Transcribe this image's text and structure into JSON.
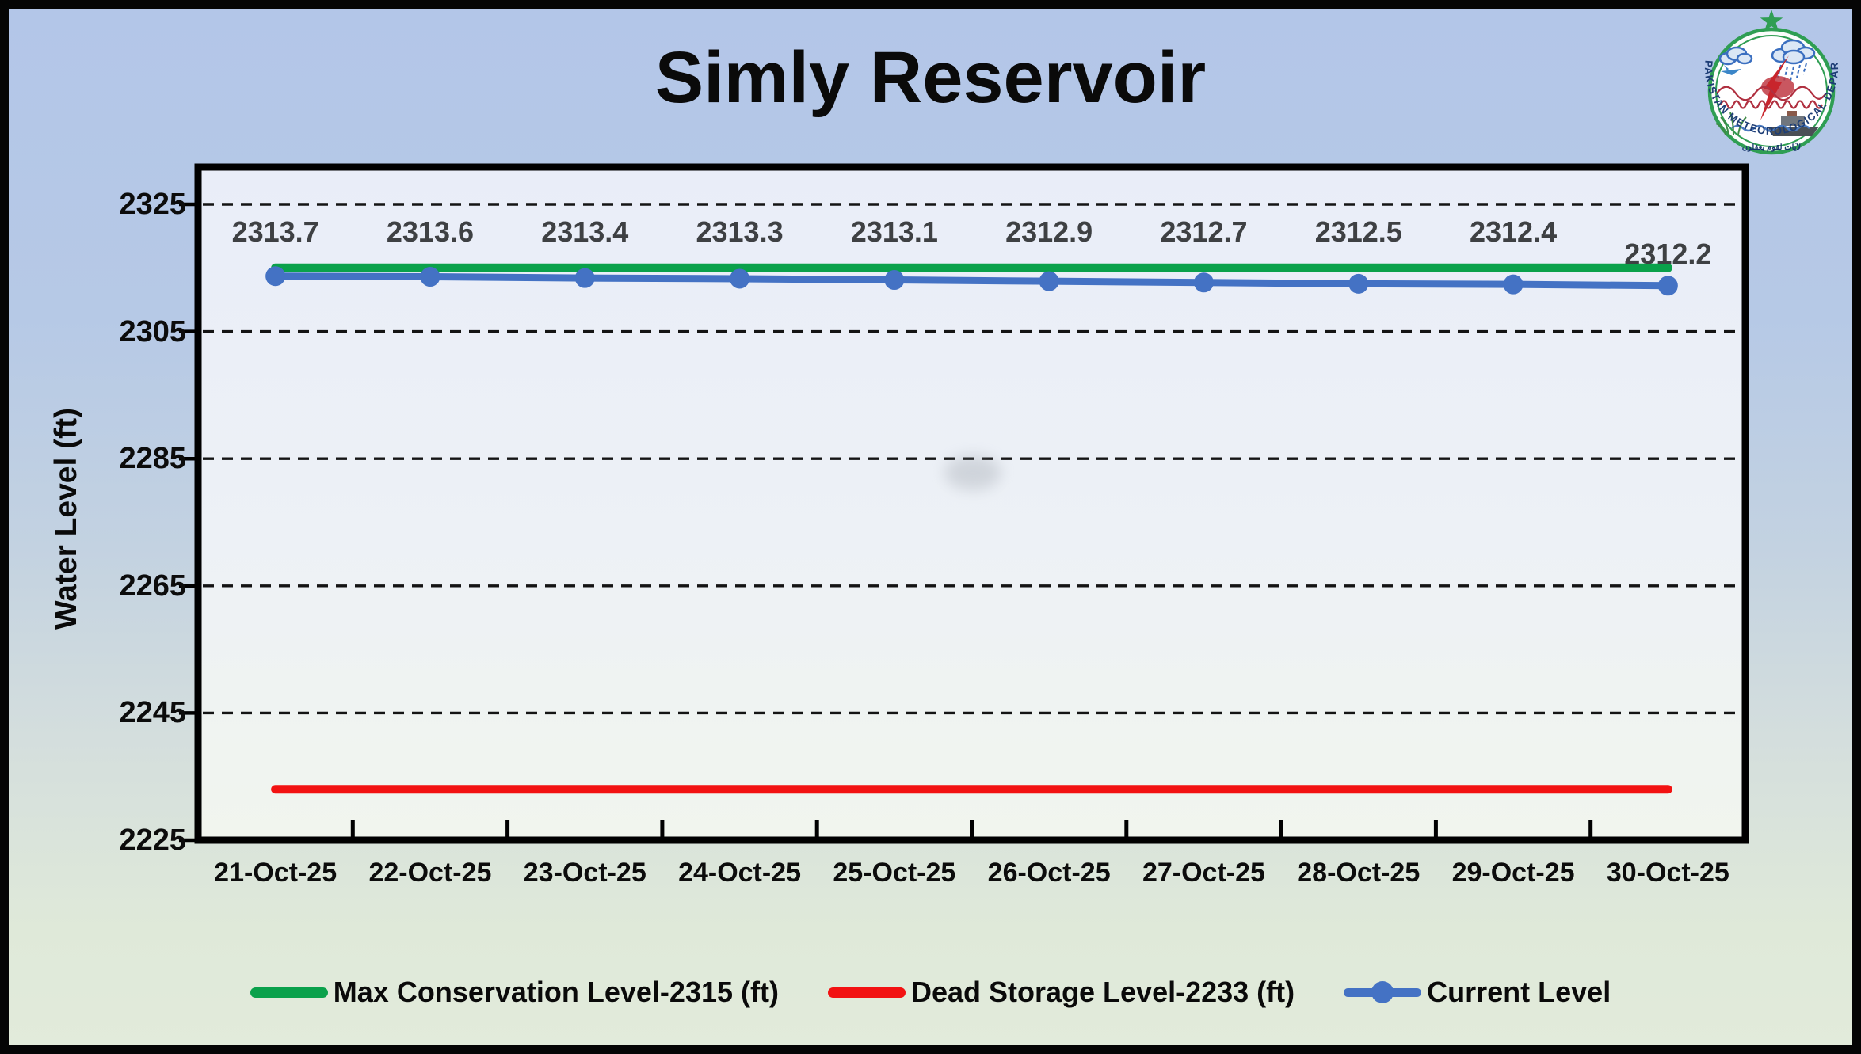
{
  "title": "Simly Reservoir",
  "logo": {
    "ring_text": "PAKISTAN   METEOROLOGICAL   DEPARTMENT",
    "motto": "لآيات لقوم يعقلون"
  },
  "chart_data": {
    "type": "line",
    "title": "Simly Reservoir",
    "xlabel": "",
    "ylabel": "Water Level (ft)",
    "ylim": [
      2225,
      2325
    ],
    "yticks": [
      2325,
      2305,
      2285,
      2265,
      2245,
      2225
    ],
    "grid": "horizontal-dashed-black",
    "legend_position": "bottom",
    "categories": [
      "21-Oct-25",
      "22-Oct-25",
      "23-Oct-25",
      "24-Oct-25",
      "25-Oct-25",
      "26-Oct-25",
      "27-Oct-25",
      "28-Oct-25",
      "29-Oct-25",
      "30-Oct-25"
    ],
    "series": [
      {
        "name": "Max Conservation Level-2315 (ft)",
        "color": "#0aa14b",
        "marker": "none",
        "values": [
          2315,
          2315,
          2315,
          2315,
          2315,
          2315,
          2315,
          2315,
          2315,
          2315
        ]
      },
      {
        "name": "Dead Storage Level-2233 (ft)",
        "color": "#f21212",
        "marker": "none",
        "values": [
          2233,
          2233,
          2233,
          2233,
          2233,
          2233,
          2233,
          2233,
          2233,
          2233
        ]
      },
      {
        "name": "Current Level",
        "color": "#4472c4",
        "marker": "circle",
        "values": [
          2313.7,
          2313.6,
          2313.4,
          2313.3,
          2313.1,
          2312.9,
          2312.7,
          2312.5,
          2312.4,
          2312.2
        ]
      }
    ],
    "data_labels_series": "Current Level"
  },
  "colors": {
    "background_top": "#b3c6e8",
    "background_bottom": "#e2ebdb",
    "plot_fill_top": "#e9edf8",
    "plot_fill_bottom": "#f1f5ee",
    "gridline": "#141414",
    "data_label": "#3e4043"
  }
}
